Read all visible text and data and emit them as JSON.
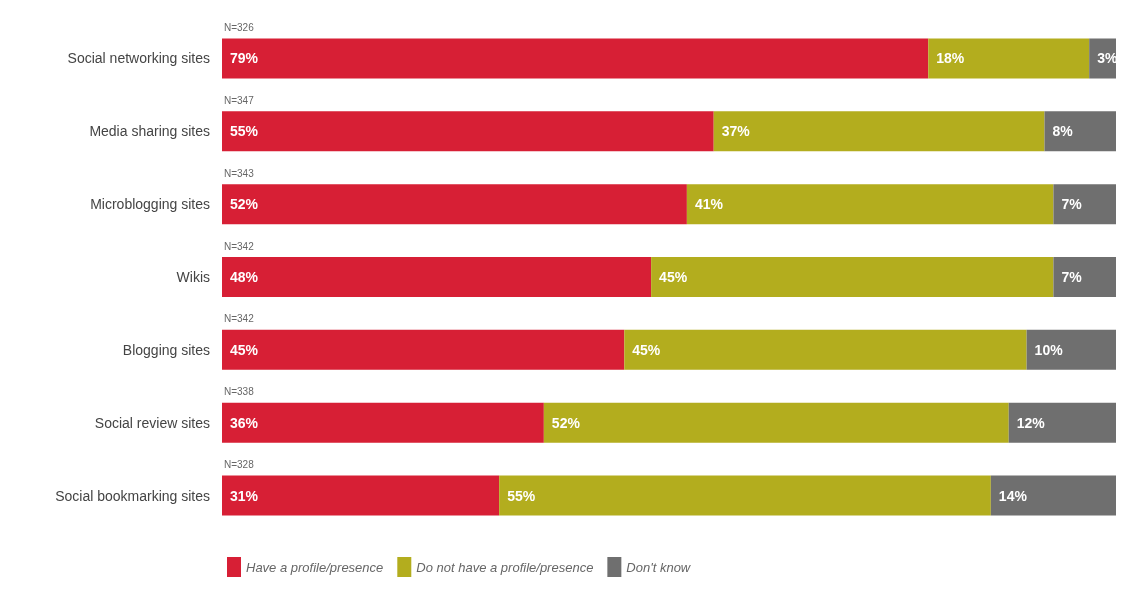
{
  "chart_data": {
    "type": "bar",
    "orientation": "horizontal",
    "stacked": true,
    "categories": [
      "Social networking sites",
      "Media sharing sites",
      "Microblogging sites",
      "Wikis",
      "Blogging sites",
      "Social review sites",
      "Social bookmarking sites"
    ],
    "series": [
      {
        "name": "Have a profile/presence",
        "color": "#d71f35",
        "values": [
          79,
          55,
          52,
          48,
          45,
          36,
          31
        ],
        "value_labels": [
          "79%",
          "55%",
          "52%",
          "48%",
          "45%",
          "36%",
          "31%"
        ]
      },
      {
        "name": "Do not have a profile/presence",
        "color": "#b3ad1e",
        "values": [
          18,
          37,
          41,
          45,
          45,
          52,
          55
        ],
        "value_labels": [
          "18%",
          "37%",
          "41%",
          "45%",
          "45%",
          "52%",
          "55%"
        ]
      },
      {
        "name": "Don't know",
        "color": "#6f6f6f",
        "values": [
          3,
          8,
          7,
          7,
          10,
          12,
          14
        ],
        "value_labels": [
          "3%",
          "8%",
          "7%",
          "7%",
          "10%",
          "12%",
          "14%"
        ]
      }
    ],
    "annotations": [
      "N=326",
      "N=347",
      "N=343",
      "N=342",
      "N=342",
      "N=338",
      "N=328"
    ],
    "legend": "bottom left"
  }
}
